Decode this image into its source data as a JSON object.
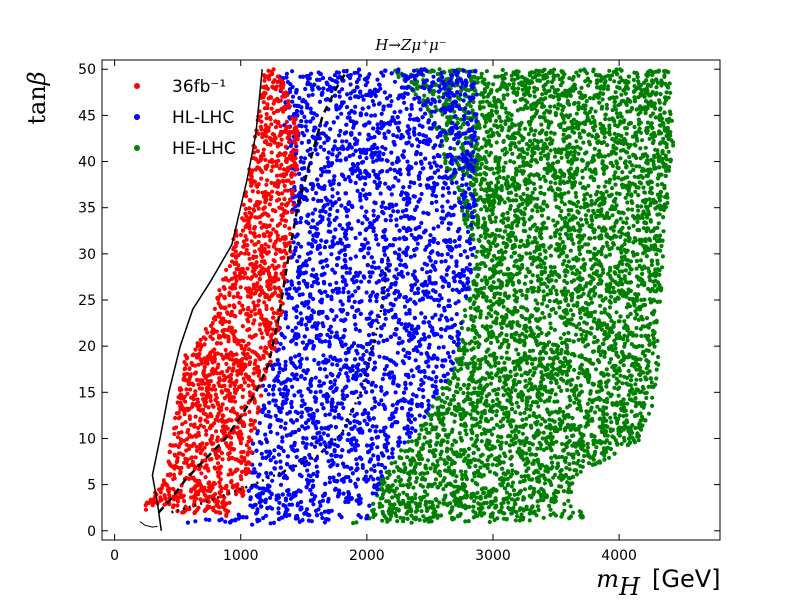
{
  "chart_data": {
    "type": "scatter",
    "title": "H→Zμ⁺μ⁻",
    "xlabel_symbol": "m",
    "xlabel_subscript": "H",
    "xlabel_unit": "[GeV]",
    "ylabel_prefix": "tan",
    "ylabel_symbol": "β",
    "xlim": [
      -100,
      4800
    ],
    "ylim": [
      -1,
      51
    ],
    "x_ticks": [
      0,
      1000,
      2000,
      3000,
      4000
    ],
    "x_tick_labels": [
      "0",
      "1000",
      "2000",
      "3000",
      "4000"
    ],
    "y_ticks": [
      0,
      5,
      10,
      15,
      20,
      25,
      30,
      35,
      40,
      45,
      50
    ],
    "y_tick_labels": [
      "0",
      "5",
      "10",
      "15",
      "20",
      "25",
      "30",
      "35",
      "40",
      "45",
      "50"
    ],
    "grid": false,
    "legend_position": "top-left",
    "series": [
      {
        "name": "36fb⁻¹",
        "color": "#ff0000",
        "region": [
          [
            220,
            2
          ],
          [
            330,
            3
          ],
          [
            500,
            2
          ],
          [
            900,
            1.5
          ],
          [
            1050,
            3
          ],
          [
            1100,
            10
          ],
          [
            1180,
            16
          ],
          [
            1280,
            20
          ],
          [
            1420,
            32
          ],
          [
            1460,
            44
          ],
          [
            1300,
            50
          ],
          [
            1190,
            50
          ],
          [
            1080,
            40
          ],
          [
            900,
            29
          ],
          [
            700,
            21
          ],
          [
            560,
            19
          ],
          [
            480,
            13
          ],
          [
            380,
            5
          ],
          [
            240,
            3
          ]
        ]
      },
      {
        "name": "HL-LHC",
        "color": "#0000ff",
        "region": [
          [
            260,
            1
          ],
          [
            1000,
            0.6
          ],
          [
            2000,
            1
          ],
          [
            2120,
            6
          ],
          [
            2400,
            11
          ],
          [
            2700,
            18
          ],
          [
            2850,
            30
          ],
          [
            2880,
            50
          ],
          [
            1300,
            50
          ],
          [
            1420,
            32
          ],
          [
            1280,
            20
          ],
          [
            1180,
            16
          ],
          [
            1100,
            10
          ],
          [
            1050,
            3
          ],
          [
            900,
            1.5
          ],
          [
            500,
            1
          ]
        ]
      },
      {
        "name": "HE-LHC",
        "color": "#008000",
        "region": [
          [
            1800,
            0.8
          ],
          [
            3000,
            0.9
          ],
          [
            3800,
            1.5
          ],
          [
            3600,
            3
          ],
          [
            3650,
            6
          ],
          [
            3950,
            8
          ],
          [
            4180,
            10
          ],
          [
            4300,
            15
          ],
          [
            4350,
            30
          ],
          [
            4430,
            42
          ],
          [
            4400,
            50
          ],
          [
            2200,
            50
          ],
          [
            2500,
            45
          ],
          [
            2850,
            30
          ],
          [
            2700,
            18
          ],
          [
            2400,
            11
          ],
          [
            2120,
            6
          ],
          [
            2000,
            1
          ]
        ]
      }
    ],
    "boundary_lines": [
      {
        "style": "solid",
        "points": [
          [
            370,
            0
          ],
          [
            340,
            3
          ],
          [
            300,
            6
          ],
          [
            360,
            10
          ],
          [
            430,
            15
          ],
          [
            520,
            20
          ],
          [
            620,
            24
          ],
          [
            760,
            27
          ],
          [
            930,
            31
          ],
          [
            1050,
            38
          ],
          [
            1120,
            43
          ],
          [
            1170,
            50
          ]
        ]
      },
      {
        "style": "dashed",
        "points": [
          [
            350,
            2
          ],
          [
            450,
            3.5
          ],
          [
            560,
            5.5
          ],
          [
            700,
            7.5
          ],
          [
            880,
            10
          ],
          [
            1030,
            13
          ],
          [
            1120,
            15
          ],
          [
            1220,
            18
          ],
          [
            1300,
            23
          ],
          [
            1370,
            29
          ],
          [
            1450,
            35
          ],
          [
            1550,
            40
          ],
          [
            1650,
            45
          ],
          [
            1760,
            48
          ],
          [
            1850,
            50
          ]
        ]
      },
      {
        "style": "dotted",
        "points": [
          [
            450,
            2
          ],
          [
            700,
            3
          ],
          [
            900,
            4
          ],
          [
            1100,
            5
          ],
          [
            1350,
            6.5
          ],
          [
            1600,
            8
          ],
          [
            1800,
            10.5
          ],
          [
            1950,
            15
          ],
          [
            2050,
            20
          ],
          [
            2130,
            25
          ],
          [
            2170,
            30
          ]
        ]
      },
      {
        "style": "solid-thin",
        "points": [
          [
            200,
            1
          ],
          [
            240,
            0.6
          ],
          [
            300,
            0.4
          ],
          [
            340,
            0.5
          ]
        ]
      }
    ]
  }
}
